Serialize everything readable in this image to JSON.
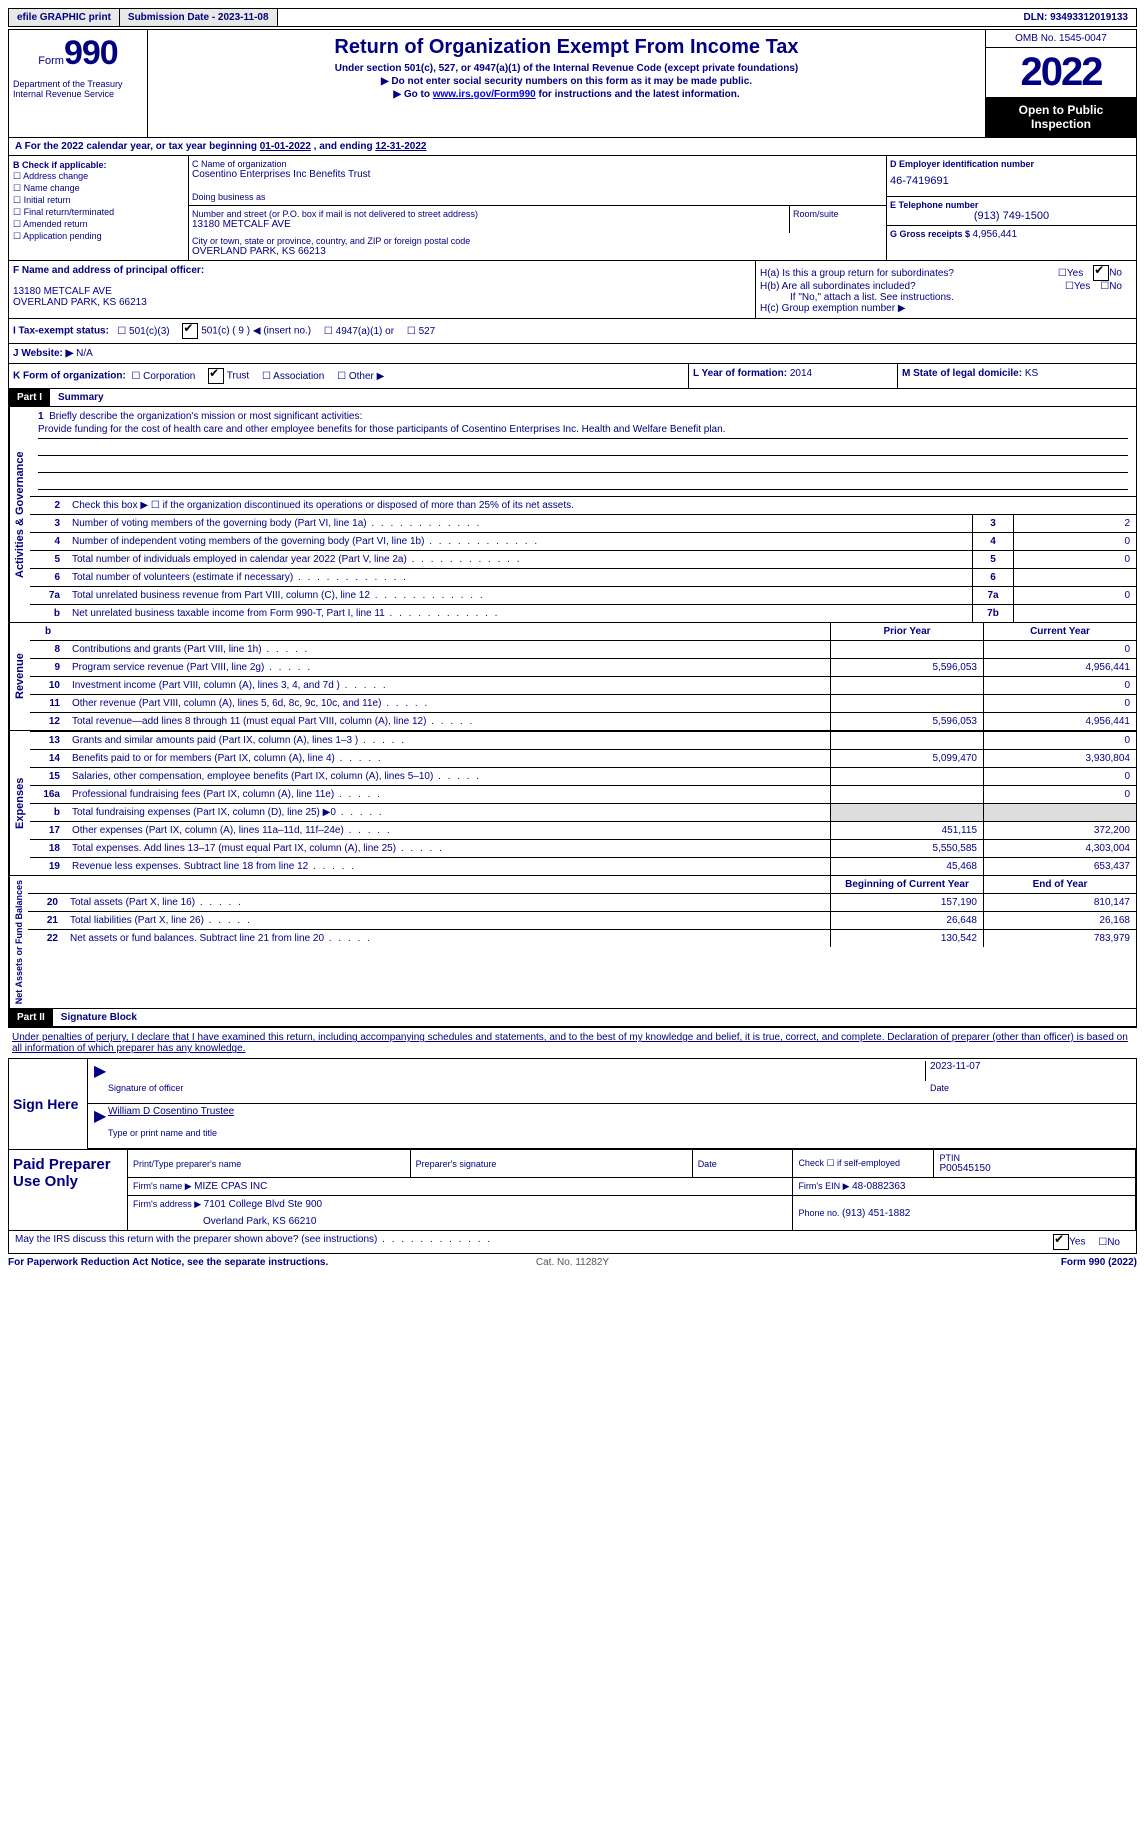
{
  "topbar": {
    "btn1": "efile GRAPHIC print",
    "btn2": "Submission Date - 2023-11-08",
    "dln": "DLN: 93493312019133"
  },
  "header": {
    "form_label": "Form",
    "form_num": "990",
    "dept": "Department of the Treasury Internal Revenue Service",
    "title": "Return of Organization Exempt From Income Tax",
    "subtitle": "Under section 501(c), 527, or 4947(a)(1) of the Internal Revenue Code (except private foundations)",
    "instr1": "▶ Do not enter social security numbers on this form as it may be made public.",
    "instr2_pre": "▶ Go to ",
    "instr2_link": "www.irs.gov/Form990",
    "instr2_post": " for instructions and the latest information.",
    "omb": "OMB No. 1545-0047",
    "year": "2022",
    "open": "Open to Public Inspection"
  },
  "period": {
    "label_a": "A For the 2022 calendar year, or tax year beginning ",
    "begin": "01-01-2022",
    "mid": "    , and ending ",
    "end": "12-31-2022"
  },
  "b": {
    "label": "B Check if applicable:",
    "opts": [
      "Address change",
      "Name change",
      "Initial return",
      "Final return/terminated",
      "Amended return",
      "Application pending"
    ]
  },
  "c": {
    "name_label": "C Name of organization",
    "name": "Cosentino Enterprises Inc Benefits Trust",
    "dba_label": "Doing business as",
    "addr_label": "Number and street (or P.O. box if mail is not delivered to street address)",
    "addr": "13180 METCALF AVE",
    "room_label": "Room/suite",
    "city_label": "City or town, state or province, country, and ZIP or foreign postal code",
    "city": "OVERLAND PARK, KS  66213"
  },
  "d": {
    "ein_label": "D Employer identification number",
    "ein": "46-7419691",
    "tel_label": "E Telephone number",
    "tel": "(913) 749-1500",
    "gross_label": "G Gross receipts $ ",
    "gross": "4,956,441"
  },
  "f": {
    "label": "F Name and address of principal officer:",
    "addr1": "13180 METCALF AVE",
    "addr2": "OVERLAND PARK, KS  66213"
  },
  "h": {
    "a_label": "H(a)  Is this a group return for subordinates?",
    "b_label": "H(b)  Are all subordinates included?",
    "b_note": "If \"No,\" attach a list. See instructions.",
    "c_label": "H(c)  Group exemption number ▶",
    "yes": "Yes",
    "no": "No"
  },
  "i": {
    "label": "I  Tax-exempt status:",
    "opt1": "501(c)(3)",
    "opt2": "501(c) ( 9 ) ◀ (insert no.)",
    "opt3": "4947(a)(1) or",
    "opt4": "527"
  },
  "j": {
    "label": "J  Website: ▶",
    "val": "  N/A"
  },
  "k": {
    "label": "K Form of organization:",
    "opts": [
      "Corporation",
      "Trust",
      "Association",
      "Other ▶"
    ],
    "l_label": "L Year of formation: ",
    "l_val": "2014",
    "m_label": "M State of legal domicile: ",
    "m_val": "KS"
  },
  "part1": {
    "hdr": "Part I",
    "title": "Summary",
    "q1_label": "Briefly describe the organization's mission or most significant activities:",
    "q1_text": "Provide funding for the cost of health care and other employee benefits for those participants of Cosentino Enterprises Inc. Health and Welfare Benefit plan.",
    "q2": "Check this box ▶ ☐  if the organization discontinued its operations or disposed of more than 25% of its net assets.",
    "rows_gov": [
      {
        "n": "3",
        "d": "Number of voting members of the governing body (Part VI, line 1a)",
        "box": "3",
        "v": "2"
      },
      {
        "n": "4",
        "d": "Number of independent voting members of the governing body (Part VI, line 1b)",
        "box": "4",
        "v": "0"
      },
      {
        "n": "5",
        "d": "Total number of individuals employed in calendar year 2022 (Part V, line 2a)",
        "box": "5",
        "v": "0"
      },
      {
        "n": "6",
        "d": "Total number of volunteers (estimate if necessary)",
        "box": "6",
        "v": ""
      },
      {
        "n": "7a",
        "d": "Total unrelated business revenue from Part VIII, column (C), line 12",
        "box": "7a",
        "v": "0"
      },
      {
        "n": "b",
        "d": "Net unrelated business taxable income from Form 990-T, Part I, line 11",
        "box": "7b",
        "v": ""
      }
    ],
    "hdr_prior": "Prior Year",
    "hdr_curr": "Current Year",
    "rows_rev": [
      {
        "n": "8",
        "d": "Contributions and grants (Part VIII, line 1h)",
        "p": "",
        "c": "0"
      },
      {
        "n": "9",
        "d": "Program service revenue (Part VIII, line 2g)",
        "p": "5,596,053",
        "c": "4,956,441"
      },
      {
        "n": "10",
        "d": "Investment income (Part VIII, column (A), lines 3, 4, and 7d )",
        "p": "",
        "c": "0"
      },
      {
        "n": "11",
        "d": "Other revenue (Part VIII, column (A), lines 5, 6d, 8c, 9c, 10c, and 11e)",
        "p": "",
        "c": "0"
      },
      {
        "n": "12",
        "d": "Total revenue—add lines 8 through 11 (must equal Part VIII, column (A), line 12)",
        "p": "5,596,053",
        "c": "4,956,441"
      }
    ],
    "rows_exp": [
      {
        "n": "13",
        "d": "Grants and similar amounts paid (Part IX, column (A), lines 1–3 )",
        "p": "",
        "c": "0"
      },
      {
        "n": "14",
        "d": "Benefits paid to or for members (Part IX, column (A), line 4)",
        "p": "5,099,470",
        "c": "3,930,804"
      },
      {
        "n": "15",
        "d": "Salaries, other compensation, employee benefits (Part IX, column (A), lines 5–10)",
        "p": "",
        "c": "0"
      },
      {
        "n": "16a",
        "d": "Professional fundraising fees (Part IX, column (A), line 11e)",
        "p": "",
        "c": "0"
      },
      {
        "n": "b",
        "d": "Total fundraising expenses (Part IX, column (D), line 25) ▶0",
        "p": "shade",
        "c": "shade"
      },
      {
        "n": "17",
        "d": "Other expenses (Part IX, column (A), lines 11a–11d, 11f–24e)",
        "p": "451,115",
        "c": "372,200"
      },
      {
        "n": "18",
        "d": "Total expenses. Add lines 13–17 (must equal Part IX, column (A), line 25)",
        "p": "5,550,585",
        "c": "4,303,004"
      },
      {
        "n": "19",
        "d": "Revenue less expenses. Subtract line 18 from line 12",
        "p": "45,468",
        "c": "653,437"
      }
    ],
    "hdr_beg": "Beginning of Current Year",
    "hdr_end": "End of Year",
    "rows_net": [
      {
        "n": "20",
        "d": "Total assets (Part X, line 16)",
        "p": "157,190",
        "c": "810,147"
      },
      {
        "n": "21",
        "d": "Total liabilities (Part X, line 26)",
        "p": "26,648",
        "c": "26,168"
      },
      {
        "n": "22",
        "d": "Net assets or fund balances. Subtract line 21 from line 20",
        "p": "130,542",
        "c": "783,979"
      }
    ],
    "tabs": {
      "gov": "Activities & Governance",
      "rev": "Revenue",
      "exp": "Expenses",
      "net": "Net Assets or Fund Balances"
    }
  },
  "part2": {
    "hdr": "Part II",
    "title": "Signature Block",
    "decl": "Under penalties of perjury, I declare that I have examined this return, including accompanying schedules and statements, and to the best of my knowledge and belief, it is true, correct, and complete. Declaration of preparer (other than officer) is based on all information of which preparer has any knowledge.",
    "sign_here": "Sign Here",
    "sig_officer": "Signature of officer",
    "sig_date": "2023-11-07",
    "date_label": "Date",
    "name_title": "William D Cosentino  Trustee",
    "name_label": "Type or print name and title",
    "paid": "Paid Preparer Use Only",
    "prep_name_label": "Print/Type preparer's name",
    "prep_sig_label": "Preparer's signature",
    "prep_date_label": "Date",
    "prep_check": "Check ☐ if self-employed",
    "ptin_label": "PTIN",
    "ptin": "P00545150",
    "firm_name_label": "Firm's name    ▶ ",
    "firm_name": "MIZE CPAS INC",
    "firm_ein_label": "Firm's EIN ▶ ",
    "firm_ein": "48-0882363",
    "firm_addr_label": "Firm's address ▶ ",
    "firm_addr1": "7101 College Blvd Ste 900",
    "firm_addr2": "Overland Park, KS  66210",
    "phone_label": "Phone no. ",
    "phone": "(913) 451-1882",
    "discuss": "May the IRS discuss this return with the preparer shown above? (see instructions)",
    "yes": "Yes",
    "no": "No"
  },
  "footer": {
    "left": "For Paperwork Reduction Act Notice, see the separate instructions.",
    "mid": "Cat. No. 11282Y",
    "right": "Form 990 (2022)"
  }
}
